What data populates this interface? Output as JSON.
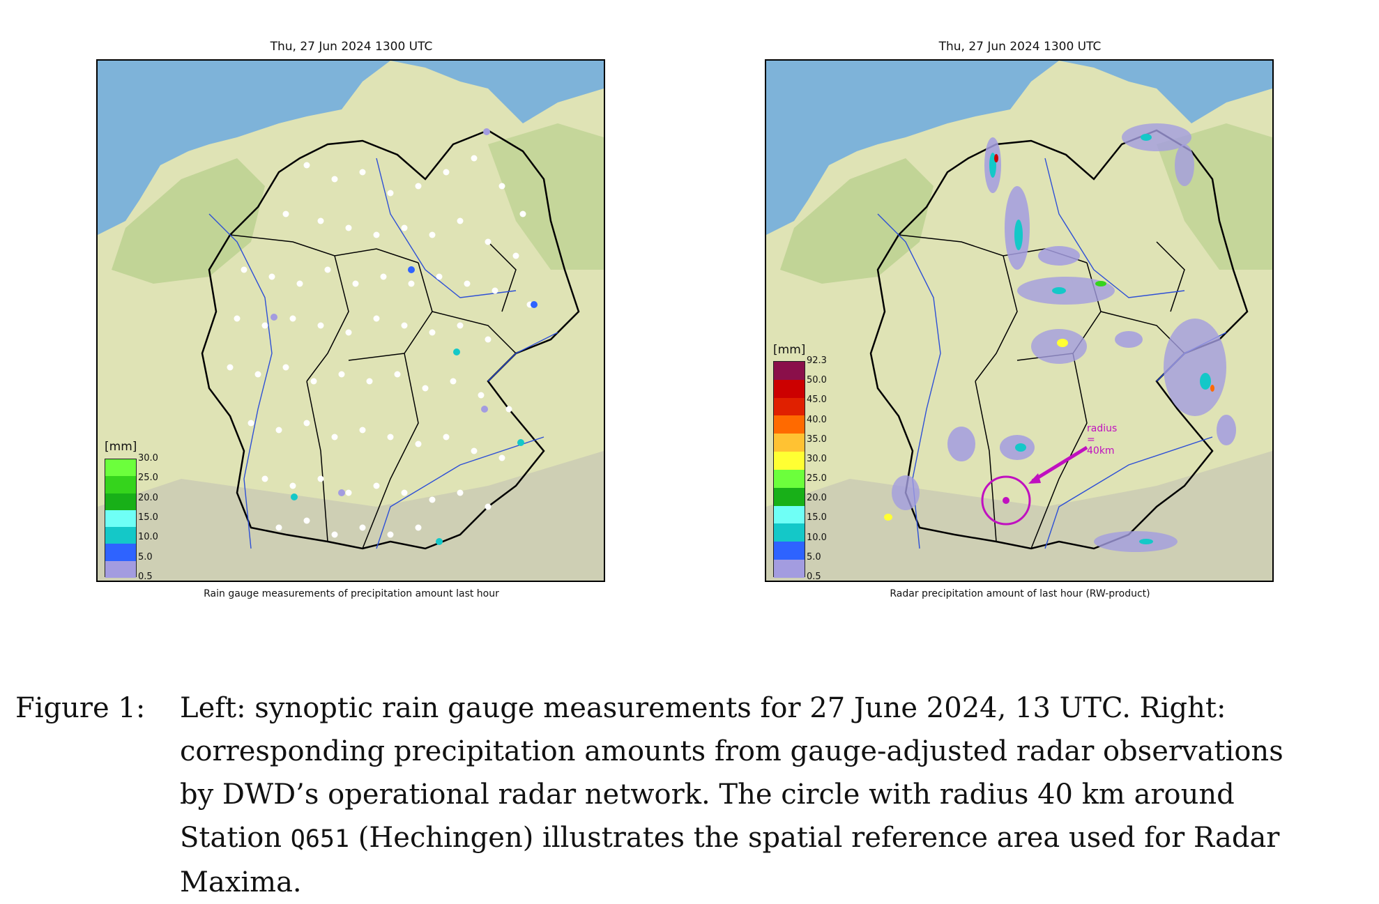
{
  "left_panel": {
    "title": "Thu, 27 Jun 2024 1300 UTC",
    "caption": "Rain gauge measurements of precipitation amount last hour",
    "legend": {
      "unit": "[mm]",
      "ticks": [
        "30.0",
        "25.0",
        "20.0",
        "15.0",
        "10.0",
        "5.0",
        "0.5"
      ],
      "colors": [
        "#6cff3c",
        "#35d41c",
        "#18b018",
        "#6ffff6",
        "#14c8c8",
        "#2e63ff",
        "#a39ce0"
      ]
    }
  },
  "right_panel": {
    "title": "Thu, 27 Jun 2024 1300 UTC",
    "caption": "Radar precipitation amount of last hour (RW-product)",
    "legend": {
      "unit": "[mm]",
      "ticks": [
        "92.3",
        "50.0",
        "45.0",
        "40.0",
        "35.0",
        "30.0",
        "25.0",
        "20.0",
        "15.0",
        "10.0",
        "5.0",
        "0.5"
      ],
      "colors": [
        "#8a0f4a",
        "#cc0000",
        "#e02000",
        "#ff6a00",
        "#ffc233",
        "#ffff33",
        "#6cff3c",
        "#18b018",
        "#6ffff6",
        "#14c8c8",
        "#2e63ff",
        "#a39ce0"
      ]
    },
    "annotation": "radius = 40km"
  },
  "map_colors": {
    "sea": "#7eb3d9",
    "land": "#dfe3b5",
    "lowland_green": "#b9d08f",
    "borders": "#000000",
    "rivers": "#2d4fd6",
    "annotation": "#c010c0"
  },
  "figure_caption": {
    "label": "Figure 1:",
    "line1": "Left: synoptic rain gauge measurements for 27 June 2024, 13 UTC. Right:",
    "line2": "corresponding precipitation amounts from gauge-adjusted radar observations",
    "line3": "by DWD’s operational radar network. The circle with radius 40 km around",
    "line4_pre": "Station",
    "line4_code": "Q651",
    "line4_post": "(Hechingen) illustrates the spatial reference area used for Radar",
    "line5": "Maxima."
  }
}
